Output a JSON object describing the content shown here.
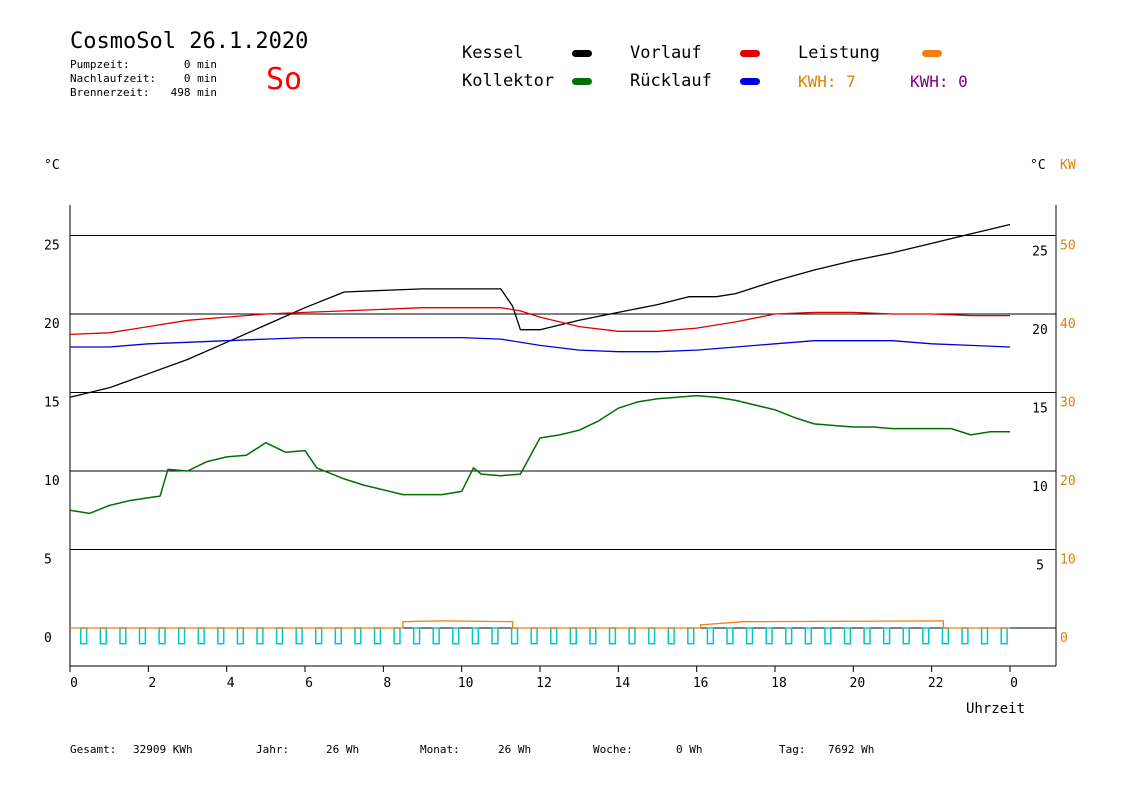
{
  "header": {
    "title": "CosmoSol 26.1.2020",
    "day_label": "So",
    "pumpzeit_label": "Pumpzeit:",
    "pumpzeit_value": "0 min",
    "nachlaufzeit_label": "Nachlaufzeit:",
    "nachlaufzeit_value": "0 min",
    "brennerzeit_label": "Brennerzeit:",
    "brennerzeit_value": "498 min"
  },
  "legend": {
    "kessel": "Kessel",
    "kollektor": "Kollektor",
    "vorlauf": "Vorlauf",
    "ruecklauf": "Rücklauf",
    "leistung": "Leistung",
    "kwh_1": "KWH: 7",
    "kwh_2": "KWH: 0",
    "colors": {
      "kessel": "#000000",
      "kollektor": "#007000",
      "vorlauf": "#e00000",
      "ruecklauf": "#0000e0",
      "leistung": "#f08010",
      "kwh_1": "#e08000",
      "kwh_2": "#800080",
      "pump": "#00c8c8"
    }
  },
  "axes": {
    "left_unit": "°C",
    "right_unit_c": "°C",
    "right_unit_kw": "KW",
    "xlabel": "Uhrzeit"
  },
  "chart_data": {
    "type": "line",
    "xlabel": "Uhrzeit",
    "ylabel": "°C",
    "xlim": [
      0,
      24
    ],
    "ylim": [
      -2,
      27
    ],
    "x_ticks": [
      "0",
      "2",
      "4",
      "6",
      "8",
      "10",
      "12",
      "14",
      "16",
      "18",
      "20",
      "22",
      "0"
    ],
    "y_ticks_left": [
      "0",
      "5",
      "10",
      "15",
      "20",
      "25"
    ],
    "y_ticks_right_c": [
      "5",
      "10",
      "15",
      "20",
      "25"
    ],
    "y_ticks_right_kw": [
      "0",
      "10",
      "20",
      "30",
      "40",
      "50"
    ],
    "grid_y": [
      0,
      5,
      10,
      15,
      20,
      25
    ],
    "series": [
      {
        "name": "Kessel",
        "color": "#000000",
        "x": [
          0,
          1,
          2,
          3,
          4,
          5,
          6,
          7,
          8,
          9,
          10,
          11,
          11.3,
          11.5,
          12,
          13,
          14,
          15,
          15.8,
          16.5,
          17,
          18,
          19,
          20,
          21,
          22,
          23,
          24
        ],
        "y": [
          14.7,
          15.3,
          16.2,
          17.1,
          18.2,
          19.3,
          20.4,
          21.4,
          21.5,
          21.6,
          21.6,
          21.6,
          20.5,
          19.0,
          19.0,
          19.6,
          20.1,
          20.6,
          21.1,
          21.1,
          21.3,
          22.1,
          22.8,
          23.4,
          23.9,
          24.5,
          25.1,
          25.7
        ]
      },
      {
        "name": "Vorlauf",
        "color": "#e00000",
        "x": [
          0,
          1,
          2,
          3,
          4,
          5,
          6,
          7,
          8,
          9,
          10,
          11,
          11.5,
          12,
          13,
          14,
          15,
          16,
          17,
          18,
          19,
          20,
          21,
          22,
          23,
          24
        ],
        "y": [
          18.7,
          18.8,
          19.2,
          19.6,
          19.8,
          20.0,
          20.1,
          20.2,
          20.3,
          20.4,
          20.4,
          20.4,
          20.2,
          19.8,
          19.2,
          18.9,
          18.9,
          19.1,
          19.5,
          20.0,
          20.1,
          20.1,
          20.0,
          20.0,
          19.9,
          19.9
        ]
      },
      {
        "name": "Rücklauf",
        "color": "#0000e0",
        "x": [
          0,
          1,
          2,
          3,
          4,
          5,
          6,
          7,
          8,
          9,
          10,
          11,
          12,
          13,
          14,
          15,
          16,
          17,
          18,
          19,
          20,
          21,
          22,
          23,
          24
        ],
        "y": [
          17.9,
          17.9,
          18.1,
          18.2,
          18.3,
          18.4,
          18.5,
          18.5,
          18.5,
          18.5,
          18.5,
          18.4,
          18.0,
          17.7,
          17.6,
          17.6,
          17.7,
          17.9,
          18.1,
          18.3,
          18.3,
          18.3,
          18.1,
          18.0,
          17.9
        ]
      },
      {
        "name": "Kollektor",
        "color": "#007000",
        "x": [
          0,
          0.5,
          1,
          1.5,
          2,
          2.3,
          2.5,
          3,
          3.5,
          4,
          4.5,
          5,
          5.5,
          6,
          6.3,
          7,
          7.5,
          8,
          8.5,
          9,
          9.5,
          10,
          10.3,
          10.5,
          11,
          11.5,
          12,
          12.5,
          13,
          13.5,
          14,
          14.5,
          15,
          15.5,
          16,
          16.5,
          17,
          17.5,
          18,
          18.5,
          19,
          19.5,
          20,
          20.5,
          21,
          21.5,
          22,
          22.5,
          23,
          23.5,
          24
        ],
        "y": [
          7.5,
          7.3,
          7.8,
          8.1,
          8.3,
          8.4,
          10.1,
          10.0,
          10.6,
          10.9,
          11.0,
          11.8,
          11.2,
          11.3,
          10.2,
          9.5,
          9.1,
          8.8,
          8.5,
          8.5,
          8.5,
          8.7,
          10.2,
          9.8,
          9.7,
          9.8,
          12.1,
          12.3,
          12.6,
          13.2,
          14.0,
          14.4,
          14.6,
          14.7,
          14.8,
          14.7,
          14.5,
          14.2,
          13.9,
          13.4,
          13.0,
          12.9,
          12.8,
          12.8,
          12.7,
          12.7,
          12.7,
          12.7,
          12.3,
          12.5,
          12.5
        ]
      },
      {
        "name": "Leistung",
        "color": "#f08010",
        "x": [
          0,
          8.5,
          8.5,
          9.5,
          11.3,
          11.3,
          16.1,
          16.1,
          17.2,
          22.3,
          22.3,
          24
        ],
        "y": [
          0,
          0,
          0.4,
          0.45,
          0.4,
          0,
          0,
          0.2,
          0.4,
          0.45,
          0,
          0
        ]
      }
    ],
    "pump_cycles": {
      "color": "#00c8c8",
      "count": 48,
      "level_on": 0,
      "level_off": -1
    }
  },
  "footer": {
    "gesamt_label": "Gesamt:",
    "gesamt_value": "32909 KWh",
    "jahr_label": "Jahr:",
    "jahr_value": "26 Wh",
    "monat_label": "Monat:",
    "monat_value": "26 Wh",
    "woche_label": "Woche:",
    "woche_value": "0 Wh",
    "tag_label": "Tag:",
    "tag_value": "7692 Wh"
  }
}
